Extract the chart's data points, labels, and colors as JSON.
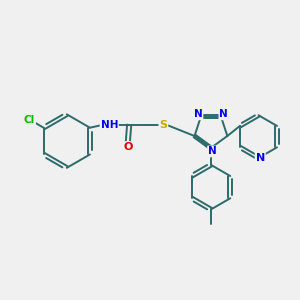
{
  "bg_color": "#f0f0f0",
  "bond_color": "#2d6b6b",
  "bond_width": 1.4,
  "atom_colors": {
    "Cl": "#00bb00",
    "N": "#0000ee",
    "O": "#dd0000",
    "S": "#ccaa00",
    "H": "#555555"
  },
  "font_size_atom": 7.5
}
